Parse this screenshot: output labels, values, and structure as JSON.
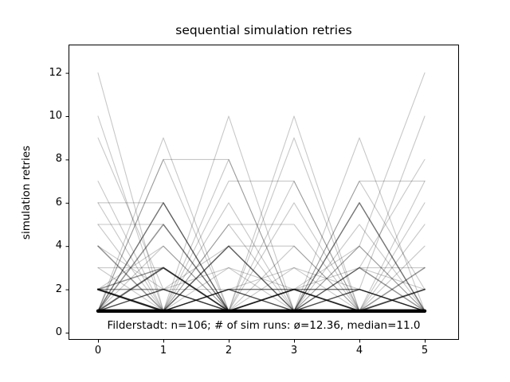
{
  "figure": {
    "title": "sequential simulation retries",
    "ylabel": "simulation retries",
    "xlabel": "",
    "annotation": "Filderstadt: n=106; # of sim runs: ø=12.36, median=11.0"
  },
  "chart_data": {
    "type": "line",
    "title": "sequential simulation retries",
    "xlabel": "",
    "ylabel": "simulation retries",
    "x": [
      0,
      1,
      2,
      3,
      4,
      5
    ],
    "x_ticks": [
      "0",
      "1",
      "2",
      "3",
      "4",
      "5"
    ],
    "y_ticks": [
      "0",
      "2",
      "4",
      "6",
      "8",
      "10",
      "12"
    ],
    "y_tick_values": [
      0,
      2,
      4,
      6,
      8,
      10,
      12
    ],
    "xlim": [
      -0.45,
      5.52
    ],
    "ylim": [
      -0.33,
      13.31
    ],
    "grid": false,
    "legend": false,
    "line_color": "#000000",
    "annotation": "Filderstadt: n=106; # of sim runs: ø=12.36, median=11.0",
    "n_runs": 106,
    "mean_sim_runs": 12.36,
    "median_sim_runs": 11.0,
    "runs": [
      {
        "values": [
          1,
          1,
          1,
          1,
          1,
          1
        ],
        "count": 21
      },
      {
        "values": [
          2,
          1,
          1,
          1,
          1,
          1
        ],
        "count": 4
      },
      {
        "values": [
          2,
          2,
          1,
          1,
          1,
          1
        ],
        "count": 2
      },
      {
        "values": [
          1,
          3,
          1,
          1,
          1,
          1
        ],
        "count": 3
      },
      {
        "values": [
          2,
          3,
          1,
          1,
          1,
          1
        ],
        "count": 2
      },
      {
        "values": [
          1,
          1,
          1,
          2,
          1,
          1
        ],
        "count": 3
      },
      {
        "values": [
          1,
          1,
          1,
          1,
          3,
          1
        ],
        "count": 2
      },
      {
        "values": [
          1,
          1,
          1,
          2,
          3,
          2
        ],
        "count": 1
      },
      {
        "values": [
          1,
          1,
          2,
          1,
          1,
          1
        ],
        "count": 2
      },
      {
        "values": [
          1,
          1,
          1,
          1,
          1,
          2
        ],
        "count": 3
      },
      {
        "values": [
          1,
          2,
          1,
          1,
          1,
          1
        ],
        "count": 2
      },
      {
        "values": [
          1,
          1,
          1,
          1,
          2,
          1
        ],
        "count": 2
      },
      {
        "values": [
          1,
          1,
          1,
          1,
          1,
          3
        ],
        "count": 2
      },
      {
        "values": [
          1,
          1,
          2,
          1,
          2,
          1
        ],
        "count": 1
      },
      {
        "values": [
          2,
          1,
          1,
          2,
          1,
          1
        ],
        "count": 1
      },
      {
        "values": [
          1,
          1,
          1,
          3,
          1,
          1
        ],
        "count": 1
      },
      {
        "values": [
          1,
          1,
          3,
          1,
          1,
          1
        ],
        "count": 1
      },
      {
        "values": [
          1,
          6,
          1,
          1,
          1,
          1
        ],
        "count": 2
      },
      {
        "values": [
          1,
          5,
          1,
          1,
          1,
          1
        ],
        "count": 2
      },
      {
        "values": [
          4,
          1,
          1,
          1,
          1,
          1
        ],
        "count": 2
      },
      {
        "values": [
          1,
          1,
          4,
          1,
          1,
          1
        ],
        "count": 2
      },
      {
        "values": [
          1,
          1,
          1,
          1,
          6,
          1
        ],
        "count": 2
      },
      {
        "values": [
          1,
          1,
          2,
          2,
          1,
          1
        ],
        "count": 2
      },
      {
        "values": [
          1,
          1,
          1,
          2,
          2,
          1
        ],
        "count": 2
      },
      {
        "values": [
          1,
          1,
          1,
          1,
          1,
          4
        ],
        "count": 1
      },
      {
        "values": [
          3,
          1,
          2,
          1,
          1,
          1
        ],
        "count": 1
      },
      {
        "values": [
          1,
          2,
          3,
          2,
          1,
          1
        ],
        "count": 1
      },
      {
        "values": [
          1,
          1,
          2,
          3,
          2,
          1
        ],
        "count": 1
      },
      {
        "values": [
          1,
          4,
          1,
          4,
          1,
          1
        ],
        "count": 1
      },
      {
        "values": [
          1,
          1,
          4,
          1,
          4,
          1
        ],
        "count": 1
      },
      {
        "values": [
          5,
          1,
          1,
          1,
          1,
          5
        ],
        "count": 1
      },
      {
        "values": [
          1,
          1,
          5,
          1,
          1,
          1
        ],
        "count": 1
      },
      {
        "values": [
          1,
          1,
          5,
          5,
          1,
          1
        ],
        "count": 1
      },
      {
        "values": [
          1,
          1,
          1,
          1,
          5,
          1
        ],
        "count": 1
      },
      {
        "values": [
          2,
          4,
          1,
          2,
          4,
          1
        ],
        "count": 1
      },
      {
        "values": [
          4,
          2,
          4,
          1,
          2,
          1
        ],
        "count": 1
      },
      {
        "values": [
          1,
          6,
          1,
          6,
          1,
          1
        ],
        "count": 1
      },
      {
        "values": [
          6,
          1,
          1,
          1,
          1,
          6
        ],
        "count": 1
      },
      {
        "values": [
          1,
          1,
          6,
          1,
          6,
          1
        ],
        "count": 1
      },
      {
        "values": [
          3,
          3,
          1,
          1,
          3,
          3
        ],
        "count": 1
      },
      {
        "values": [
          1,
          2,
          2,
          2,
          2,
          1
        ],
        "count": 1
      },
      {
        "values": [
          5,
          5,
          1,
          1,
          1,
          1
        ],
        "count": 1
      },
      {
        "values": [
          6,
          6,
          1,
          1,
          1,
          1
        ],
        "count": 1
      },
      {
        "values": [
          1,
          1,
          1,
          1,
          7,
          7
        ],
        "count": 1
      },
      {
        "values": [
          1,
          1,
          7,
          7,
          1,
          1
        ],
        "count": 1
      },
      {
        "values": [
          1,
          8,
          8,
          1,
          1,
          1
        ],
        "count": 1
      },
      {
        "values": [
          1,
          1,
          4,
          4,
          1,
          1
        ],
        "count": 1
      },
      {
        "values": [
          12,
          1,
          1,
          1,
          1,
          1
        ],
        "count": 1
      },
      {
        "values": [
          10,
          1,
          2,
          1,
          1,
          1
        ],
        "count": 1
      },
      {
        "values": [
          9,
          2,
          1,
          1,
          1,
          1
        ],
        "count": 1
      },
      {
        "values": [
          1,
          9,
          1,
          1,
          1,
          1
        ],
        "count": 1
      },
      {
        "values": [
          1,
          8,
          1,
          1,
          1,
          1
        ],
        "count": 1
      },
      {
        "values": [
          1,
          1,
          10,
          1,
          1,
          1
        ],
        "count": 1
      },
      {
        "values": [
          2,
          1,
          8,
          1,
          1,
          1
        ],
        "count": 1
      },
      {
        "values": [
          1,
          1,
          1,
          10,
          1,
          1
        ],
        "count": 1
      },
      {
        "values": [
          1,
          1,
          1,
          9,
          1,
          2
        ],
        "count": 1
      },
      {
        "values": [
          1,
          1,
          1,
          1,
          9,
          1
        ],
        "count": 1
      },
      {
        "values": [
          1,
          1,
          1,
          1,
          4,
          12
        ],
        "count": 1
      },
      {
        "values": [
          1,
          1,
          1,
          1,
          2,
          10
        ],
        "count": 1
      },
      {
        "values": [
          1,
          2,
          1,
          1,
          3,
          8
        ],
        "count": 1
      },
      {
        "values": [
          1,
          1,
          1,
          7,
          1,
          7
        ],
        "count": 1
      },
      {
        "values": [
          7,
          1,
          1,
          1,
          1,
          2
        ],
        "count": 1
      },
      {
        "values": [
          1,
          1,
          1,
          1,
          7,
          2
        ],
        "count": 1
      }
    ]
  }
}
